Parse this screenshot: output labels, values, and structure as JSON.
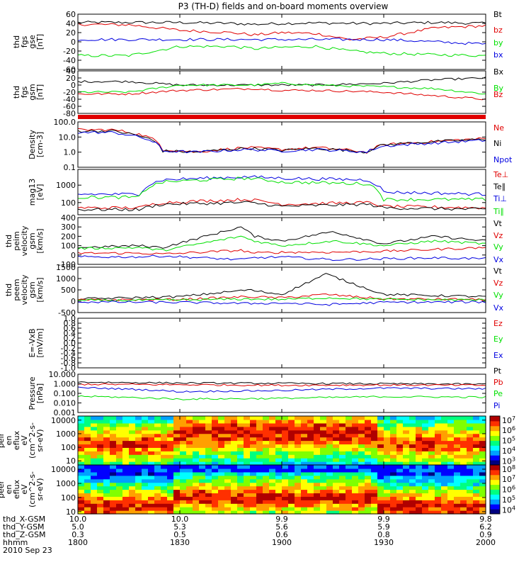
{
  "title": "P3 (TH-D) fields and on-board moments overview",
  "colors": {
    "black": "#000000",
    "red": "#e00000",
    "green": "#00e000",
    "blue": "#0000e0"
  },
  "chart_data": [
    {
      "type": "line",
      "panel": "fgs_gse",
      "ylabel": [
        "thd",
        "fgs",
        "gse",
        "[nT]"
      ],
      "ylim": [
        -60,
        60
      ],
      "yticks": [
        "60",
        "40",
        "20",
        "0",
        "-20",
        "-40",
        "-60"
      ],
      "ytick_values": [
        60,
        40,
        20,
        0,
        -20,
        -40,
        -60
      ],
      "series": [
        {
          "name": "Bt",
          "color": "#000000",
          "x": [
            1800,
            1815,
            1830,
            1845,
            1852,
            1900,
            1910,
            1920,
            1930,
            1945,
            2000
          ],
          "values": [
            42,
            42,
            42,
            40,
            38,
            40,
            41,
            40,
            40,
            42,
            40
          ]
        },
        {
          "name": "bz",
          "color": "#e00000",
          "x": [
            1800,
            1815,
            1830,
            1845,
            1852,
            1900,
            1910,
            1920,
            1930,
            1945,
            2000
          ],
          "values": [
            38,
            37,
            25,
            20,
            15,
            20,
            18,
            5,
            10,
            30,
            35
          ]
        },
        {
          "name": "by",
          "color": "#00e000",
          "x": [
            1800,
            1815,
            1830,
            1845,
            1852,
            1900,
            1910,
            1920,
            1930,
            1945,
            2000
          ],
          "values": [
            -30,
            -30,
            -10,
            -10,
            -15,
            -12,
            -10,
            -20,
            -25,
            -28,
            -30
          ]
        },
        {
          "name": "bx",
          "color": "#0000e0",
          "x": [
            1800,
            1815,
            1830,
            1845,
            1852,
            1900,
            1910,
            1920,
            1930,
            1945,
            2000
          ],
          "values": [
            5,
            5,
            5,
            5,
            5,
            5,
            5,
            5,
            5,
            0,
            -5
          ]
        }
      ]
    },
    {
      "type": "line",
      "panel": "fgs_gsm",
      "ylabel": [
        "thd",
        "fgs",
        "gsm",
        "[nT]"
      ],
      "ylim": [
        -80,
        40
      ],
      "yticks": [
        "40",
        "20",
        "0",
        "-20",
        "-40",
        "-60",
        "-80"
      ],
      "ytick_values": [
        40,
        20,
        0,
        -20,
        -40,
        -60,
        -80
      ],
      "series": [
        {
          "name": "Bx",
          "color": "#000000",
          "x": [
            1800,
            1815,
            1830,
            1852,
            1900,
            1910,
            1930,
            1945,
            2000
          ],
          "values": [
            10,
            10,
            0,
            0,
            0,
            0,
            5,
            15,
            20
          ]
        },
        {
          "name": "By",
          "color": "#00e000",
          "x": [
            1800,
            1815,
            1830,
            1852,
            1900,
            1910,
            1930,
            1945,
            2000
          ],
          "values": [
            -20,
            -20,
            0,
            0,
            5,
            0,
            -5,
            -10,
            -25
          ]
        },
        {
          "name": "Bz",
          "color": "#e00000",
          "x": [
            1800,
            1815,
            1830,
            1852,
            1900,
            1910,
            1930,
            1945,
            2000
          ],
          "values": [
            -25,
            -25,
            -15,
            -10,
            -15,
            -15,
            -20,
            -30,
            -40
          ]
        }
      ]
    },
    {
      "type": "line",
      "panel": "density",
      "yscale": "log",
      "ylabel": [
        "Density",
        "[cm-3]"
      ],
      "ylim": [
        0.1,
        100
      ],
      "yticks": [
        "100.0",
        "10.0",
        "1.0",
        "0.1"
      ],
      "ytick_values": [
        100,
        10,
        1,
        0.1
      ],
      "series": [
        {
          "name": "Ne",
          "color": "#e00000",
          "x": [
            1800,
            1810,
            1818,
            1825,
            1835,
            1850,
            1900,
            1910,
            1925,
            1930,
            1945,
            2000
          ],
          "values": [
            30,
            30,
            15,
            1.5,
            1,
            2,
            1.5,
            2,
            1,
            3,
            5,
            8
          ]
        },
        {
          "name": "Ni",
          "color": "#000000",
          "x": [
            1800,
            1810,
            1818,
            1825,
            1835,
            1850,
            1900,
            1910,
            1925,
            1930,
            1945,
            2000
          ],
          "values": [
            25,
            25,
            12,
            1.2,
            1,
            1.8,
            1.3,
            1.8,
            1,
            3,
            5,
            7
          ]
        },
        {
          "name": "Npot",
          "color": "#0000e0",
          "x": [
            1800,
            1810,
            1818,
            1825,
            1835,
            1850,
            1900,
            1910,
            1925,
            1930,
            1945,
            2000
          ],
          "values": [
            20,
            20,
            10,
            1.2,
            1,
            1.5,
            1.2,
            1.5,
            1,
            2.5,
            4,
            6
          ]
        }
      ]
    },
    {
      "type": "line",
      "panel": "temperature",
      "yscale": "log",
      "ylabel": [
        "mag13",
        "[eV]"
      ],
      "ylim": [
        20,
        8000
      ],
      "yticks": [
        "1000",
        "100"
      ],
      "ytick_values": [
        1000,
        100
      ],
      "series": [
        {
          "name": "Te⊥",
          "color": "#e00000",
          "x": [
            1800,
            1818,
            1825,
            1850,
            1900,
            1925,
            1930,
            2000
          ],
          "values": [
            50,
            50,
            100,
            150,
            80,
            100,
            60,
            50
          ]
        },
        {
          "name": "Te∥",
          "color": "#000000",
          "x": [
            1800,
            1818,
            1825,
            1850,
            1900,
            1925,
            1930,
            2000
          ],
          "values": [
            40,
            40,
            80,
            100,
            60,
            80,
            50,
            40
          ]
        },
        {
          "name": "Ti⊥",
          "color": "#0000e0",
          "x": [
            1800,
            1818,
            1825,
            1850,
            1900,
            1925,
            1930,
            2000
          ],
          "values": [
            300,
            300,
            2000,
            3000,
            2500,
            2000,
            400,
            300
          ]
        },
        {
          "name": "Ti∥",
          "color": "#00e000",
          "x": [
            1800,
            1818,
            1825,
            1850,
            1900,
            1925,
            1930,
            2000
          ],
          "values": [
            200,
            200,
            1500,
            2500,
            1500,
            1200,
            150,
            150
          ]
        }
      ]
    },
    {
      "type": "line",
      "panel": "peim_velocity",
      "ylabel": [
        "thd",
        "peim",
        "velocity",
        "gsm",
        "[km/s]"
      ],
      "ylim": [
        -100,
        400
      ],
      "yticks": [
        "400",
        "300",
        "200",
        "100",
        "0",
        "-100"
      ],
      "ytick_values": [
        400,
        300,
        200,
        100,
        0,
        -100
      ],
      "series": [
        {
          "name": "Vt",
          "color": "#000000",
          "x": [
            1800,
            1818,
            1825,
            1848,
            1852,
            1900,
            1915,
            1930,
            1945,
            2000
          ],
          "values": [
            80,
            100,
            80,
            300,
            200,
            150,
            250,
            120,
            200,
            150
          ]
        },
        {
          "name": "Vz",
          "color": "#e00000",
          "x": [
            1800,
            1818,
            1825,
            1848,
            1852,
            1900,
            1915,
            1930,
            1945,
            2000
          ],
          "values": [
            20,
            20,
            10,
            50,
            20,
            30,
            30,
            40,
            60,
            80
          ]
        },
        {
          "name": "Vy",
          "color": "#00e000",
          "x": [
            1800,
            1818,
            1825,
            1848,
            1852,
            1900,
            1915,
            1930,
            1945,
            2000
          ],
          "values": [
            70,
            80,
            50,
            200,
            150,
            100,
            150,
            100,
            150,
            120
          ]
        },
        {
          "name": "Vx",
          "color": "#0000e0",
          "x": [
            1800,
            1818,
            1825,
            1848,
            1852,
            1900,
            1915,
            1930,
            1945,
            2000
          ],
          "values": [
            -20,
            -20,
            -10,
            -50,
            -30,
            -20,
            -50,
            -40,
            -30,
            -40
          ]
        }
      ]
    },
    {
      "type": "line",
      "panel": "peem_velocity",
      "ylabel": [
        "thd",
        "peem",
        "velocity",
        "gsm",
        "[km/s]"
      ],
      "ylim": [
        -500,
        1500
      ],
      "yticks": [
        "1500",
        "1000",
        "500",
        "0",
        "-500"
      ],
      "ytick_values": [
        1500,
        1000,
        500,
        0,
        -500
      ],
      "series": [
        {
          "name": "Vt",
          "color": "#000000",
          "x": [
            1800,
            1830,
            1850,
            1900,
            1913,
            1930,
            2000
          ],
          "values": [
            100,
            200,
            500,
            300,
            1200,
            300,
            200
          ]
        },
        {
          "name": "Vz",
          "color": "#e00000",
          "x": [
            1800,
            1830,
            1850,
            1900,
            1913,
            1930,
            2000
          ],
          "values": [
            50,
            80,
            200,
            150,
            300,
            100,
            80
          ]
        },
        {
          "name": "Vy",
          "color": "#00e000",
          "x": [
            1800,
            1830,
            1850,
            1900,
            1913,
            1930,
            2000
          ],
          "values": [
            30,
            50,
            100,
            80,
            150,
            80,
            50
          ]
        },
        {
          "name": "Vx",
          "color": "#0000e0",
          "x": [
            1800,
            1830,
            1850,
            1900,
            1913,
            1930,
            2000
          ],
          "values": [
            -30,
            -50,
            -100,
            -80,
            -150,
            -50,
            -30
          ]
        }
      ]
    },
    {
      "type": "line",
      "panel": "efield",
      "ylabel": [
        "E=-VxB",
        "[mV/m]"
      ],
      "ylim": [
        -1,
        1
      ],
      "yticks": [
        "1.0",
        "0.8",
        "0.6",
        "0.4",
        "0.2",
        "0.0",
        "-0.2",
        "-0.4",
        "-0.6",
        "-0.8",
        "-1.0"
      ],
      "ytick_values": [
        1,
        0.8,
        0.6,
        0.4,
        0.2,
        0,
        -0.2,
        -0.4,
        -0.6,
        -0.8,
        -1
      ],
      "series": [
        {
          "name": "Ez",
          "color": "#e00000",
          "x": [],
          "values": []
        },
        {
          "name": "Ey",
          "color": "#00e000",
          "x": [],
          "values": []
        },
        {
          "name": "Ex",
          "color": "#0000e0",
          "x": [],
          "values": []
        }
      ]
    },
    {
      "type": "line",
      "panel": "pressure",
      "yscale": "log",
      "ylabel": [
        "Pressure",
        "[nPa]"
      ],
      "ylim": [
        0.001,
        10
      ],
      "yticks": [
        "10.000",
        "1.000",
        "0.100",
        "0.010",
        "0.001"
      ],
      "ytick_values": [
        10,
        1,
        0.1,
        0.01,
        0.001
      ],
      "series": [
        {
          "name": "Pt",
          "color": "#000000",
          "x": [
            1800,
            1830,
            1900,
            1930,
            2000
          ],
          "values": [
            1.5,
            1.2,
            1.1,
            1.0,
            0.9
          ]
        },
        {
          "name": "Pb",
          "color": "#e00000",
          "x": [
            1800,
            1830,
            1900,
            1930,
            2000
          ],
          "values": [
            0.9,
            0.8,
            0.7,
            0.75,
            0.7
          ]
        },
        {
          "name": "Pe",
          "color": "#00e000",
          "x": [
            1800,
            1830,
            1900,
            1930,
            2000
          ],
          "values": [
            0.05,
            0.025,
            0.03,
            0.045,
            0.04
          ]
        },
        {
          "name": "Pi",
          "color": "#0000e0",
          "x": [
            1800,
            1830,
            1900,
            1930,
            2000
          ],
          "values": [
            0.4,
            0.15,
            0.2,
            0.35,
            0.3
          ]
        }
      ]
    },
    {
      "type": "heatmap",
      "panel": "peir_spectrogram",
      "ylabel": [
        "thd",
        "peir",
        "en",
        "eflux",
        "eV",
        "(cm^2-s-",
        "sr-eV)"
      ],
      "yscale": "log",
      "ylim": [
        5,
        20000
      ],
      "yticks": [
        "10000",
        "1000",
        "100",
        "10"
      ],
      "ytick_values": [
        10000,
        1000,
        100,
        10
      ],
      "colorbar_ticks": [
        "10^7",
        "10^6",
        "10^5",
        "10^4",
        "10^3"
      ],
      "colorbar_values": [
        7,
        6,
        5,
        4,
        3
      ],
      "colorbar_range": [
        2.6,
        7.4
      ]
    },
    {
      "type": "heatmap",
      "panel": "peer_spectrogram",
      "ylabel": [
        "thd",
        "peer",
        "en",
        "eflux",
        "eV",
        "(cm^2-s-",
        "sr-eV)"
      ],
      "yscale": "log",
      "ylim": [
        7,
        20000
      ],
      "yticks": [
        "10000",
        "1000",
        "100",
        "10"
      ],
      "ytick_values": [
        10000,
        1000,
        100,
        10
      ],
      "colorbar_ticks": [
        "10^8",
        "10^7",
        "10^6",
        "10^5",
        "10^4"
      ],
      "colorbar_values": [
        8,
        7,
        6,
        5,
        4
      ],
      "colorbar_range": [
        3.6,
        8.4
      ]
    }
  ],
  "xaxis": {
    "row_labels": [
      "thd_X-GSM",
      "thd_Y-GSM",
      "thd_Z-GSM",
      "hhmm",
      "2010 Sep 23"
    ],
    "ticks": [
      {
        "t": 1800,
        "vals": [
          "10.0",
          "5.0",
          "0.3",
          "1800"
        ]
      },
      {
        "t": 1830,
        "vals": [
          "10.0",
          "5.3",
          "0.5",
          "1830"
        ]
      },
      {
        "t": 1900,
        "vals": [
          "9.9",
          "5.6",
          "0.6",
          "1900"
        ]
      },
      {
        "t": 1930,
        "vals": [
          "9.9",
          "5.9",
          "0.8",
          "1930"
        ]
      },
      {
        "t": 2000,
        "vals": [
          "9.8",
          "6.2",
          "0.9",
          "2000"
        ]
      }
    ]
  }
}
